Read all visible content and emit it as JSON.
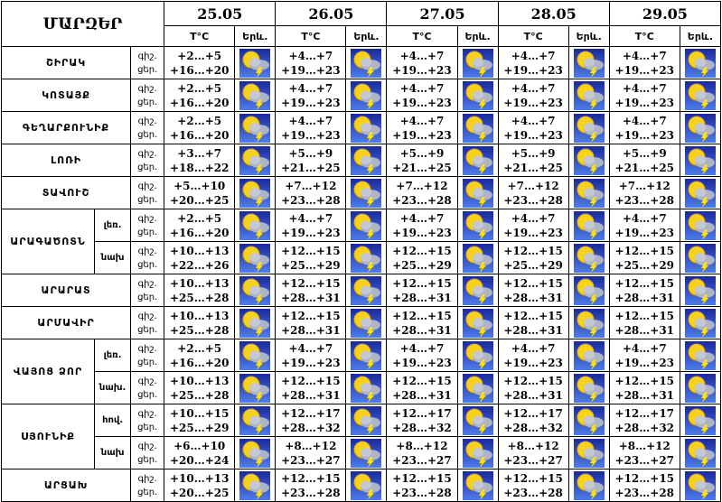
{
  "header": {
    "title": "ՄԱՐԶԵՐ",
    "dates": [
      "25.05",
      "26.05",
      "27.05",
      "28.05",
      "29.05"
    ],
    "temp_label": "T°C",
    "weather_label": "Երև."
  },
  "night_label": "գիշ.",
  "day_label": "ցեր.",
  "regions": [
    {
      "name": "ՇԻՐԱԿ",
      "rows": [
        {
          "days": [
            [
              "+2…+5",
              "+16…+20"
            ],
            [
              "+4…+7",
              "+19…+23"
            ],
            [
              "+4…+7",
              "+19…+23"
            ],
            [
              "+4…+7",
              "+19…+23"
            ],
            [
              "+4…+7",
              "+19…+23"
            ]
          ]
        }
      ]
    },
    {
      "name": "ԿՈՏԱՅՔ",
      "rows": [
        {
          "days": [
            [
              "+2…+5",
              "+16…+20"
            ],
            [
              "+4…+7",
              "+19…+23"
            ],
            [
              "+4…+7",
              "+19…+23"
            ],
            [
              "+4…+7",
              "+19…+23"
            ],
            [
              "+4…+7",
              "+19…+23"
            ]
          ]
        }
      ]
    },
    {
      "name": "ԳԵՂԱՐՔՈՒՆԻՔ",
      "rows": [
        {
          "days": [
            [
              "+2…+5",
              "+16…+20"
            ],
            [
              "+4…+7",
              "+19…+23"
            ],
            [
              "+4…+7",
              "+19…+23"
            ],
            [
              "+4…+7",
              "+19…+23"
            ],
            [
              "+4…+7",
              "+19…+23"
            ]
          ]
        }
      ]
    },
    {
      "name": "ԼՈՌԻ",
      "rows": [
        {
          "days": [
            [
              "+3…+7",
              "+18…+22"
            ],
            [
              "+5…+9",
              "+21…+25"
            ],
            [
              "+5…+9",
              "+21…+25"
            ],
            [
              "+5…+9",
              "+21…+25"
            ],
            [
              "+5…+9",
              "+21…+25"
            ]
          ]
        }
      ]
    },
    {
      "name": "ՏԱՎՈՒՇ",
      "rows": [
        {
          "days": [
            [
              "+5…+10",
              "+20…+25"
            ],
            [
              "+7…+12",
              "+23…+28"
            ],
            [
              "+7…+12",
              "+23…+28"
            ],
            [
              "+7…+12",
              "+23…+28"
            ],
            [
              "+7…+12",
              "+23…+28"
            ]
          ]
        }
      ]
    },
    {
      "name": "ԱՐԱԳԱԾՈՏՆ",
      "rows": [
        {
          "sub": "լեռ.",
          "days": [
            [
              "+2…+5",
              "+16…+20"
            ],
            [
              "+4…+7",
              "+19…+23"
            ],
            [
              "+4…+7",
              "+19…+23"
            ],
            [
              "+4…+7",
              "+19…+23"
            ],
            [
              "+4…+7",
              "+19…+23"
            ]
          ]
        },
        {
          "sub": "նախ",
          "days": [
            [
              "+10…+13",
              "+22…+26"
            ],
            [
              "+12…+15",
              "+25…+29"
            ],
            [
              "+12…+15",
              "+25…+29"
            ],
            [
              "+12…+15",
              "+25…+29"
            ],
            [
              "+12…+15",
              "+25…+29"
            ]
          ]
        }
      ]
    },
    {
      "name": "ԱՐԱՐԱՏ",
      "rows": [
        {
          "days": [
            [
              "+10…+13",
              "+25…+28"
            ],
            [
              "+12…+15",
              "+28…+31"
            ],
            [
              "+12…+15",
              "+28…+31"
            ],
            [
              "+12…+15",
              "+28…+31"
            ],
            [
              "+12…+15",
              "+28…+31"
            ]
          ]
        }
      ]
    },
    {
      "name": "ԱՐՄԱՎԻՐ",
      "rows": [
        {
          "days": [
            [
              "+10…+13",
              "+25…+28"
            ],
            [
              "+12…+15",
              "+28…+31"
            ],
            [
              "+12…+15",
              "+28…+31"
            ],
            [
              "+12…+15",
              "+28…+31"
            ],
            [
              "+12…+15",
              "+28…+31"
            ]
          ]
        }
      ]
    },
    {
      "name": "ՎԱՅՈՑ ՁՈՐ",
      "rows": [
        {
          "sub": "լեռ.",
          "days": [
            [
              "+2…+5",
              "+16…+20"
            ],
            [
              "+4…+7",
              "+19…+23"
            ],
            [
              "+4…+7",
              "+19…+23"
            ],
            [
              "+4…+7",
              "+19…+23"
            ],
            [
              "+4…+7",
              "+19…+23"
            ]
          ]
        },
        {
          "sub": "նախ.",
          "days": [
            [
              "+10…+13",
              "+25…+28"
            ],
            [
              "+12…+15",
              "+28…+31"
            ],
            [
              "+12…+15",
              "+28…+31"
            ],
            [
              "+12…+15",
              "+28…+31"
            ],
            [
              "+12…+15",
              "+28…+31"
            ]
          ]
        }
      ]
    },
    {
      "name": "ՍՅՈՒՆԻՔ",
      "rows": [
        {
          "sub": "հով.",
          "days": [
            [
              "+10…+15",
              "+25…+29"
            ],
            [
              "+12…+17",
              "+28…+32"
            ],
            [
              "+12…+17",
              "+28…+32"
            ],
            [
              "+12…+17",
              "+28…+32"
            ],
            [
              "+12…+17",
              "+28…+32"
            ]
          ]
        },
        {
          "sub": "նախ",
          "days": [
            [
              "+6…+10",
              "+20…+24"
            ],
            [
              "+8…+12",
              "+23…+27"
            ],
            [
              "+8…+12",
              "+23…+27"
            ],
            [
              "+8…+12",
              "+23…+27"
            ],
            [
              "+8…+12",
              "+23…+27"
            ]
          ]
        }
      ]
    },
    {
      "name": "ԱՐՑԱԽ",
      "rows": [
        {
          "days": [
            [
              "+10…+13",
              "+20…+25"
            ],
            [
              "+12…+15",
              "+23…+28"
            ],
            [
              "+12…+15",
              "+23…+28"
            ],
            [
              "+12…+15",
              "+23…+28"
            ],
            [
              "+12…+15",
              "+23…+28"
            ]
          ]
        }
      ]
    }
  ]
}
